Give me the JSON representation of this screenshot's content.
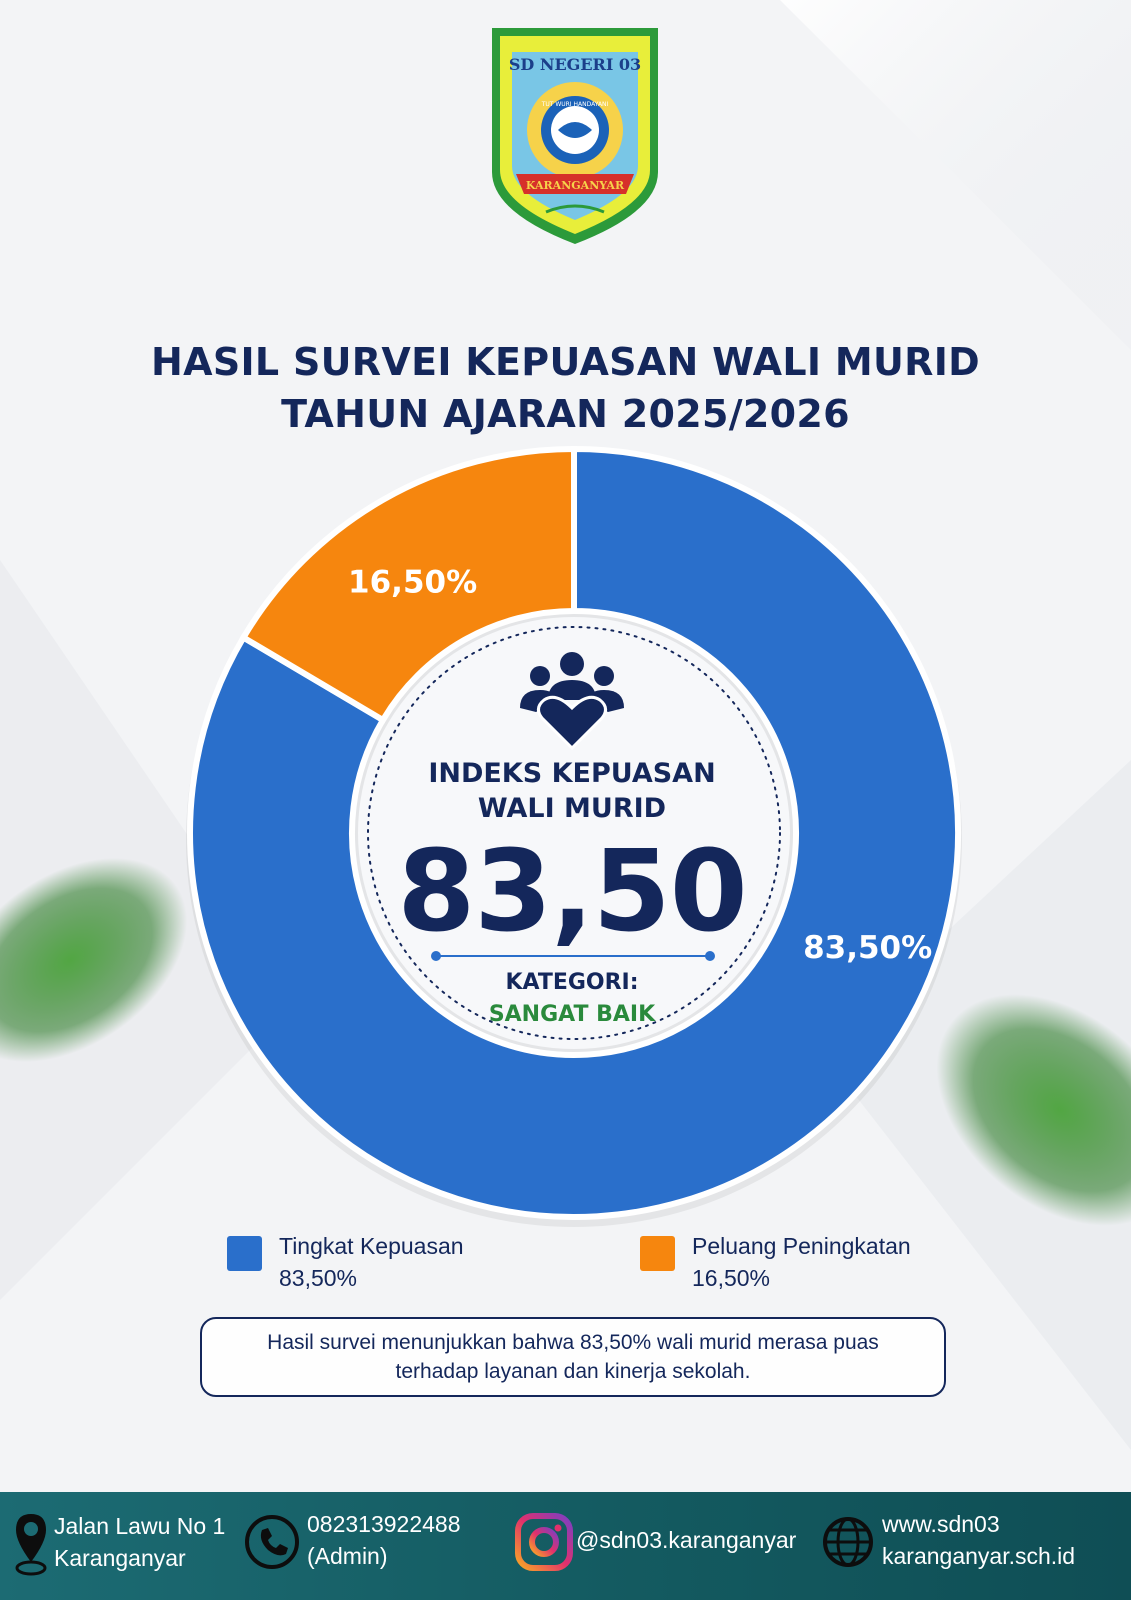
{
  "logo": {
    "top_text": "SD NEGERI 03",
    "motto": "TUT WURI HANDAYANI",
    "ribbon_text": "KARANGANYAR"
  },
  "title": {
    "line1": "HASIL SURVEI KEPUASAN WALI MURID",
    "line2": "TAHUN AJARAN 2025/2026"
  },
  "chart_data": {
    "type": "pie",
    "title": "",
    "slices": [
      {
        "name": "Tingkat Kepuasan",
        "value": 83.5,
        "label": "83,50%",
        "color": "#2a6fcb"
      },
      {
        "name": "Peluang Peningkatan",
        "value": 16.5,
        "label": "16,50%",
        "color": "#f6860e"
      }
    ],
    "legend_placement": "bottom"
  },
  "center": {
    "icon": "people-heart-icon",
    "label_line1": "INDEKS KEPUASAN",
    "label_line2": "WALI MURID",
    "value": "83,50",
    "category_label": "KATEGORI:",
    "category_value": "SANGAT BAIK"
  },
  "legend": [
    {
      "label": "Tingkat Kepuasan",
      "value": "83,50%",
      "color": "#2a6fcb"
    },
    {
      "label": "Peluang Peningkatan",
      "value": "16,50%",
      "color": "#f6860e"
    }
  ],
  "note": "Hasil survei menunjukkan bahwa 83,50% wali murid merasa puas terhadap layanan dan kinerja sekolah.",
  "footer": {
    "address": {
      "icon": "location-pin-icon",
      "line1": "Jalan Lawu No 1",
      "line2": "Karanganyar"
    },
    "phone": {
      "icon": "phone-icon",
      "line1": "082313922488",
      "line2": "(Admin)"
    },
    "instagram": {
      "icon": "instagram-icon",
      "text": "@sdn03.karanganyar"
    },
    "website": {
      "icon": "globe-icon",
      "line1": "www.sdn03",
      "line2": "karanganyar.sch.id"
    }
  },
  "colors": {
    "navy": "#14275b",
    "blue": "#2a6fcb",
    "orange": "#f6860e",
    "green": "#2a8a3c",
    "footer": "#13595f"
  }
}
